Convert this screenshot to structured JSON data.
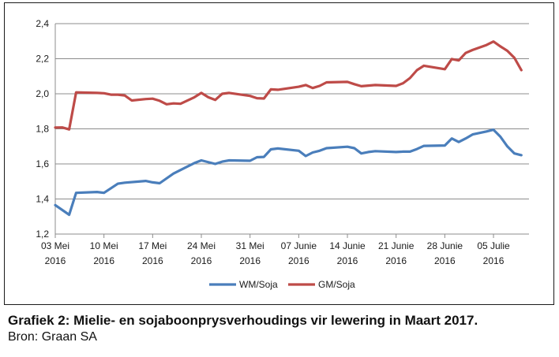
{
  "chart_data": {
    "type": "line",
    "title": "",
    "xlabel": "",
    "ylabel": "",
    "ylim": [
      1.2,
      2.4
    ],
    "yticks": [
      "1,2",
      "1,4",
      "1,6",
      "1,8",
      "2,0",
      "2,2",
      "2,4"
    ],
    "ytick_values": [
      1.2,
      1.4,
      1.6,
      1.8,
      2.0,
      2.2,
      2.4
    ],
    "x_start": "2016-05-03",
    "xlim_days": [
      0,
      66
    ],
    "xticks": [
      {
        "day": 0,
        "line1": "03 Mei",
        "line2": "2016"
      },
      {
        "day": 7,
        "line1": "10 Mei",
        "line2": "2016"
      },
      {
        "day": 14,
        "line1": "17 Mei",
        "line2": "2016"
      },
      {
        "day": 21,
        "line1": "24 Mei",
        "line2": "2016"
      },
      {
        "day": 28,
        "line1": "31 Mei",
        "line2": "2016"
      },
      {
        "day": 35,
        "line1": "07 Junie",
        "line2": "2016"
      },
      {
        "day": 42,
        "line1": "14 Junie",
        "line2": "2016"
      },
      {
        "day": 49,
        "line1": "21 Junie",
        "line2": "2016"
      },
      {
        "day": 56,
        "line1": "28 Junie",
        "line2": "2016"
      },
      {
        "day": 63,
        "line1": "05 Julie",
        "line2": "2016"
      }
    ],
    "grid": "horizontal",
    "legend_position": "bottom",
    "series": [
      {
        "name": "WM/Soja",
        "color": "#4a7ebb",
        "points": [
          [
            0,
            1.365
          ],
          [
            2,
            1.31
          ],
          [
            3,
            1.435
          ],
          [
            6,
            1.44
          ],
          [
            7,
            1.435
          ],
          [
            9,
            1.487
          ],
          [
            10,
            1.493
          ],
          [
            13,
            1.503
          ],
          [
            14,
            1.495
          ],
          [
            15,
            1.49
          ],
          [
            17,
            1.545
          ],
          [
            19,
            1.585
          ],
          [
            20,
            1.605
          ],
          [
            21,
            1.62
          ],
          [
            23,
            1.6
          ],
          [
            24,
            1.613
          ],
          [
            25,
            1.62
          ],
          [
            28,
            1.618
          ],
          [
            29,
            1.638
          ],
          [
            30,
            1.64
          ],
          [
            31,
            1.683
          ],
          [
            32,
            1.688
          ],
          [
            35,
            1.675
          ],
          [
            36,
            1.645
          ],
          [
            37,
            1.665
          ],
          [
            38,
            1.675
          ],
          [
            39,
            1.69
          ],
          [
            42,
            1.698
          ],
          [
            43,
            1.69
          ],
          [
            44,
            1.66
          ],
          [
            45,
            1.668
          ],
          [
            46,
            1.673
          ],
          [
            49,
            1.668
          ],
          [
            50,
            1.67
          ],
          [
            51,
            1.67
          ],
          [
            52,
            1.685
          ],
          [
            53,
            1.703
          ],
          [
            56,
            1.705
          ],
          [
            57,
            1.745
          ],
          [
            58,
            1.725
          ],
          [
            59,
            1.745
          ],
          [
            60,
            1.768
          ],
          [
            62,
            1.785
          ],
          [
            63,
            1.795
          ],
          [
            64,
            1.755
          ],
          [
            65,
            1.7
          ],
          [
            66,
            1.66
          ],
          [
            67,
            1.65
          ]
        ]
      },
      {
        "name": "GM/Soja",
        "color": "#be4b48",
        "points": [
          [
            0,
            1.807
          ],
          [
            1,
            1.808
          ],
          [
            2,
            1.797
          ],
          [
            3,
            2.008
          ],
          [
            6,
            2.005
          ],
          [
            7,
            2.003
          ],
          [
            8,
            1.995
          ],
          [
            9,
            1.995
          ],
          [
            10,
            1.99
          ],
          [
            11,
            1.962
          ],
          [
            13,
            1.97
          ],
          [
            14,
            1.972
          ],
          [
            15,
            1.96
          ],
          [
            16,
            1.94
          ],
          [
            17,
            1.945
          ],
          [
            18,
            1.943
          ],
          [
            20,
            1.98
          ],
          [
            21,
            2.005
          ],
          [
            22,
            1.98
          ],
          [
            23,
            1.965
          ],
          [
            24,
            2.0
          ],
          [
            25,
            2.005
          ],
          [
            28,
            1.988
          ],
          [
            29,
            1.975
          ],
          [
            30,
            1.973
          ],
          [
            31,
            2.025
          ],
          [
            32,
            2.023
          ],
          [
            35,
            2.04
          ],
          [
            36,
            2.05
          ],
          [
            37,
            2.033
          ],
          [
            38,
            2.045
          ],
          [
            39,
            2.065
          ],
          [
            42,
            2.068
          ],
          [
            43,
            2.055
          ],
          [
            44,
            2.043
          ],
          [
            46,
            2.05
          ],
          [
            49,
            2.045
          ],
          [
            50,
            2.06
          ],
          [
            51,
            2.09
          ],
          [
            52,
            2.135
          ],
          [
            53,
            2.16
          ],
          [
            56,
            2.14
          ],
          [
            57,
            2.198
          ],
          [
            58,
            2.19
          ],
          [
            59,
            2.233
          ],
          [
            60,
            2.25
          ],
          [
            62,
            2.278
          ],
          [
            63,
            2.298
          ],
          [
            64,
            2.27
          ],
          [
            65,
            2.245
          ],
          [
            66,
            2.205
          ],
          [
            67,
            2.135
          ]
        ]
      }
    ]
  },
  "caption": {
    "title": "Grafiek 2: Mielie- en sojaboonprysverhoudings vir lewering in Maart 2017.",
    "source": "Bron: Graan SA"
  }
}
